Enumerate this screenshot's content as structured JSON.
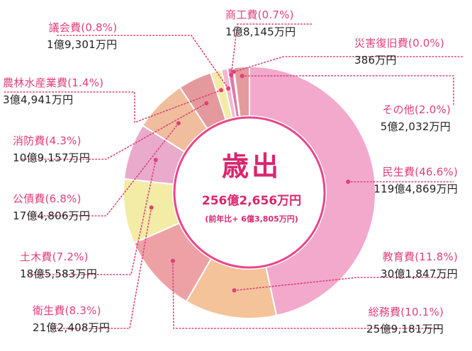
{
  "chart_data": {
    "type": "pie",
    "title": "歳出",
    "total": "256億2,656万円",
    "subtitle": "(前年比+ 6億3,805万円)",
    "slices": [
      {
        "name": "民生費",
        "pct_label": "(46.6%)",
        "amount": "119億4,869万円",
        "value": 46.6,
        "color": "#f2a9cc"
      },
      {
        "name": "教育費",
        "pct_label": "(11.8%)",
        "amount": "30億1,847万円",
        "value": 11.8,
        "color": "#f4c39a"
      },
      {
        "name": "総務費",
        "pct_label": "(10.1%)",
        "amount": "25億9,181万円",
        "value": 10.1,
        "color": "#eea1a4"
      },
      {
        "name": "衛生費",
        "pct_label": "(8.3%)",
        "amount": "21億2,408万円",
        "value": 8.3,
        "color": "#f3eca6"
      },
      {
        "name": "土木費",
        "pct_label": "(7.2%)",
        "amount": "18億5,583万円",
        "value": 7.2,
        "color": "#e9aacb"
      },
      {
        "name": "公債費",
        "pct_label": "(6.8%)",
        "amount": "17億4,806万円",
        "value": 6.8,
        "color": "#f0be9e"
      },
      {
        "name": "消防費",
        "pct_label": "(4.3%)",
        "amount": "10億9,157万円",
        "value": 4.3,
        "color": "#e49a9c"
      },
      {
        "name": "農林水産業費",
        "pct_label": "(1.4%)",
        "amount": "3億4,941万円",
        "value": 1.4,
        "color": "#f3eaa6"
      },
      {
        "name": "議会費",
        "pct_label": "(0.8%)",
        "amount": "1億9,301万円",
        "value": 0.8,
        "color": "#f3b7d2"
      },
      {
        "name": "商工費",
        "pct_label": "(0.7%)",
        "amount": "1億8,145万円",
        "value": 0.7,
        "color": "#e07aa8"
      },
      {
        "name": "災害復旧費",
        "pct_label": "(0.0%)",
        "amount": "386万円",
        "value": 0.0,
        "color": "#e88aa0"
      },
      {
        "name": "その他",
        "pct_label": "(2.0%)",
        "amount": "5億2,032万円",
        "value": 2.0,
        "color": "#e39a9d"
      }
    ],
    "slice_order_clockwise_from_top": [
      "民生費",
      "教育費",
      "総務費",
      "衛生費",
      "土木費",
      "公債費",
      "消防費",
      "農林水産業費",
      "議会費",
      "商工費",
      "災害復旧費",
      "その他"
    ],
    "legend": "callout labels around chart",
    "accent_color": "#e0407a"
  }
}
